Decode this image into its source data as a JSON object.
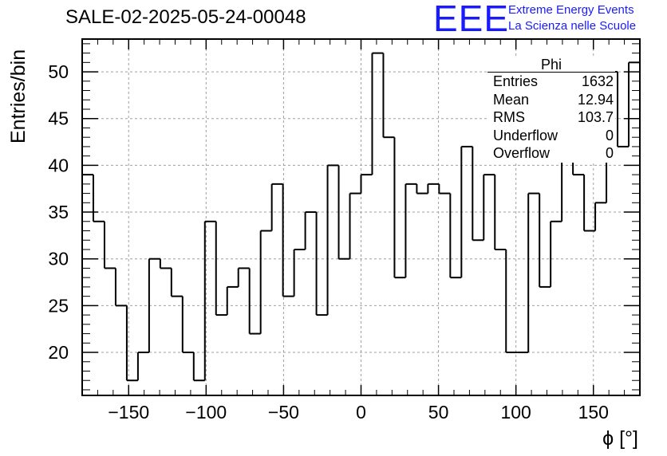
{
  "header": {
    "run_title": "SALE-02-2025-05-24-00048",
    "logo_text": "EEE",
    "logo_line1": "Extreme Energy Events",
    "logo_line2": "La Scienza nelle Scuole"
  },
  "stats": {
    "title": "Phi",
    "rows": [
      {
        "key": "Entries",
        "value": "1632"
      },
      {
        "key": "Mean",
        "value": "12.94"
      },
      {
        "key": "RMS",
        "value": "103.7"
      },
      {
        "key": "Underflow",
        "value": "0"
      },
      {
        "key": "Overflow",
        "value": "0"
      }
    ]
  },
  "colors": {
    "line": "#000000",
    "grid": "#a0a0a0",
    "logo": "#1a1aff"
  },
  "chart_data": {
    "type": "histogram",
    "xlabel": "ϕ [°]",
    "ylabel": "Entries/bin",
    "xlim": [
      -180,
      180
    ],
    "ylim": [
      15.4,
      53.5
    ],
    "grid": true,
    "bin_width": 7.2,
    "x_ticks": [
      -150,
      -100,
      -50,
      0,
      50,
      100,
      150
    ],
    "y_ticks": [
      20,
      25,
      30,
      35,
      40,
      45,
      50
    ],
    "x_tick_labels": [
      "−150",
      "−100",
      "−50",
      "0",
      "50",
      "100",
      "150"
    ],
    "y_tick_labels": [
      "20",
      "25",
      "30",
      "35",
      "40",
      "45",
      "50"
    ],
    "values": [
      39,
      34,
      29,
      25,
      17,
      20,
      30,
      29,
      26,
      20,
      17,
      34,
      24,
      27,
      29,
      22,
      33,
      38,
      26,
      31,
      35,
      24,
      40,
      30,
      37,
      39,
      52,
      43,
      28,
      38,
      37,
      38,
      37,
      28,
      42,
      32,
      39,
      31,
      20,
      20,
      37,
      27,
      34,
      43,
      39,
      33,
      36,
      50,
      42,
      51
    ]
  }
}
